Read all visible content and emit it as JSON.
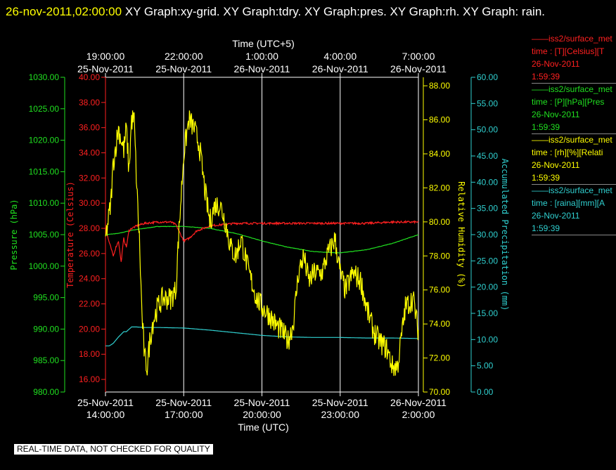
{
  "header": {
    "timestamp": "26-nov-2011,02:00:00",
    "graphs": "  XY Graph:xy-grid.  XY Graph:tdry.  XY Graph:pres.  XY Graph:rh.  XY Graph: rain."
  },
  "footer": {
    "notice": "REAL-TIME DATA, NOT CHECKED FOR QUALITY"
  },
  "legend": [
    {
      "line1": "——iss2/surface_met",
      "line2": "time : [T][Celsius][T",
      "line3": "26-Nov-2011",
      "line4": "1:59:39",
      "color": "#ff2020"
    },
    {
      "line1": "——iss2/surface_met",
      "line2": "time : [P][hPa][Pres",
      "line3": "26-Nov-2011",
      "line4": "1:59:39",
      "color": "#20e020"
    },
    {
      "line1": "——iss2/surface_met",
      "line2": "time : [rh][%][Relati",
      "line3": "26-Nov-2011",
      "line4": "1:59:39",
      "color": "#ffff00"
    },
    {
      "line1": "——iss2/surface_met",
      "line2": "time : [raina][mm][A",
      "line3": "26-Nov-2011",
      "line4": "1:59:39",
      "color": "#30d0d0"
    }
  ],
  "chart_data": {
    "type": "line",
    "x_axis_bottom": {
      "label": "Time (UTC)",
      "ticks": [
        {
          "date": "25-Nov-2011",
          "time": "14:00:00"
        },
        {
          "date": "25-Nov-2011",
          "time": "17:00:00"
        },
        {
          "date": "25-Nov-2011",
          "time": "20:00:00"
        },
        {
          "date": "25-Nov-2011",
          "time": "23:00:00"
        },
        {
          "date": "26-Nov-2011",
          "time": "2:00:00"
        }
      ],
      "range_hours": [
        0,
        12
      ]
    },
    "x_axis_top": {
      "label": "Time (UTC+5)",
      "ticks": [
        {
          "time": "19:00:00",
          "date": "25-Nov-2011"
        },
        {
          "time": "22:00:00",
          "date": "25-Nov-2011"
        },
        {
          "time": "1:00:00",
          "date": "26-Nov-2011"
        },
        {
          "time": "4:00:00",
          "date": "26-Nov-2011"
        },
        {
          "time": "7:00:00",
          "date": "26-Nov-2011"
        }
      ]
    },
    "axes": {
      "pressure": {
        "label": "Pressure (hPa)",
        "color": "#20e020",
        "range": [
          980,
          1030
        ],
        "ticks": [
          "980.00",
          "985.00",
          "990.00",
          "995.00",
          "1000.00",
          "1005.00",
          "1010.00",
          "1015.00",
          "1020.00",
          "1025.00",
          "1030.00"
        ]
      },
      "temperature": {
        "label": "Temperature (Celsius)",
        "color": "#ff2020",
        "range": [
          15,
          40
        ],
        "ticks": [
          "16.00",
          "18.00",
          "20.00",
          "22.00",
          "24.00",
          "26.00",
          "28.00",
          "30.00",
          "32.00",
          "34.00",
          "36.00",
          "38.00",
          "40.00"
        ]
      },
      "humidity": {
        "label": "Relative Humidity (%)",
        "color": "#ffff00",
        "range": [
          70,
          88.5
        ],
        "ticks": [
          "70.00",
          "72.00",
          "74.00",
          "76.00",
          "78.00",
          "80.00",
          "82.00",
          "84.00",
          "86.00",
          "88.00"
        ]
      },
      "precip": {
        "label": "Accumulated Precipitation (mm)",
        "color": "#30d0d0",
        "range": [
          0,
          60
        ],
        "ticks": [
          "0.00",
          "5.00",
          "10.00",
          "15.00",
          "20.00",
          "25.00",
          "30.00",
          "35.00",
          "40.00",
          "45.00",
          "50.00",
          "55.00",
          "60.00"
        ]
      }
    },
    "grid_hours": [
      3,
      6,
      9
    ],
    "series": [
      {
        "name": "iss2/surface_met T",
        "axis": "temperature",
        "color": "#ff2020",
        "noise": 0.08,
        "x": [
          0,
          0.1,
          0.2,
          0.3,
          0.4,
          0.5,
          0.6,
          0.7,
          0.8,
          0.9,
          1.0,
          1.2,
          1.5,
          2.0,
          2.5,
          2.7,
          3.0,
          3.2,
          3.5,
          4.0,
          5.0,
          6.0,
          7.0,
          8.0,
          9.0,
          10.0,
          11.0,
          12.0
        ],
        "y": [
          28.0,
          27.2,
          26.5,
          25.8,
          26.5,
          27.0,
          25.3,
          27.2,
          26.5,
          27.8,
          28.0,
          28.2,
          28.4,
          28.5,
          28.5,
          28.3,
          27.0,
          27.2,
          27.8,
          28.2,
          28.4,
          28.4,
          28.4,
          28.4,
          28.4,
          28.4,
          28.5,
          28.5
        ]
      },
      {
        "name": "iss2/surface_met P",
        "axis": "pressure",
        "color": "#20e020",
        "noise": 0.03,
        "x": [
          0,
          0.5,
          1,
          2,
          3,
          4,
          5,
          6,
          7,
          8,
          9,
          10,
          11,
          12
        ],
        "y": [
          1005.0,
          1005.2,
          1005.7,
          1006.3,
          1006.3,
          1006.0,
          1005.2,
          1004.0,
          1003.0,
          1002.3,
          1002.1,
          1002.6,
          1003.6,
          1005.0
        ]
      },
      {
        "name": "iss2/surface_met rh",
        "axis": "humidity",
        "color": "#ffff00",
        "noise": 0.7,
        "x": [
          0,
          0.2,
          0.3,
          0.5,
          0.7,
          0.8,
          0.9,
          1.0,
          1.1,
          1.2,
          1.3,
          1.4,
          1.5,
          1.6,
          1.7,
          1.8,
          1.9,
          2.0,
          2.2,
          2.5,
          2.7,
          2.8,
          3.0,
          3.2,
          3.4,
          3.6,
          3.8,
          4.0,
          4.2,
          4.4,
          4.6,
          4.8,
          5.0,
          5.2,
          5.5,
          5.8,
          6.0,
          6.3,
          6.5,
          6.8,
          7.0,
          7.2,
          7.4,
          7.6,
          7.8,
          8.0,
          8.3,
          8.5,
          8.8,
          9.0,
          9.2,
          9.5,
          9.8,
          10.0,
          10.3,
          10.5,
          10.8,
          11.0,
          11.2,
          11.5,
          11.8,
          12.0
        ],
        "y": [
          79.0,
          81.0,
          83.5,
          85.5,
          84.2,
          85.5,
          83.0,
          86.0,
          86.0,
          82.0,
          79.0,
          74.5,
          72.0,
          71.5,
          73.0,
          74.0,
          74.5,
          75.0,
          75.5,
          75.5,
          76.0,
          79.0,
          84.0,
          86.0,
          85.5,
          84.5,
          82.0,
          80.0,
          81.0,
          81.0,
          80.0,
          78.5,
          78.0,
          79.0,
          77.0,
          75.5,
          75.0,
          74.5,
          74.0,
          73.5,
          73.0,
          74.0,
          77.0,
          78.0,
          76.5,
          77.0,
          77.0,
          78.0,
          79.0,
          77.0,
          76.0,
          77.0,
          76.5,
          75.0,
          73.5,
          73.0,
          72.5,
          71.5,
          71.5,
          75.0,
          75.5,
          73.5
        ]
      },
      {
        "name": "iss2/surface_met raina",
        "axis": "precip",
        "color": "#30d0d0",
        "noise": 0.0,
        "x": [
          0,
          0.15,
          0.3,
          0.5,
          0.7,
          0.8,
          1.0,
          1.2,
          1.5,
          2.0,
          3,
          4,
          5,
          6,
          7,
          8,
          9,
          10,
          11,
          12
        ],
        "y": [
          8.8,
          8.8,
          9.3,
          10.5,
          11.5,
          11.5,
          12.4,
          12.4,
          12.3,
          12.3,
          12.2,
          11.8,
          11.3,
          10.8,
          10.5,
          10.4,
          10.4,
          10.3,
          10.3,
          10.2
        ]
      }
    ]
  }
}
